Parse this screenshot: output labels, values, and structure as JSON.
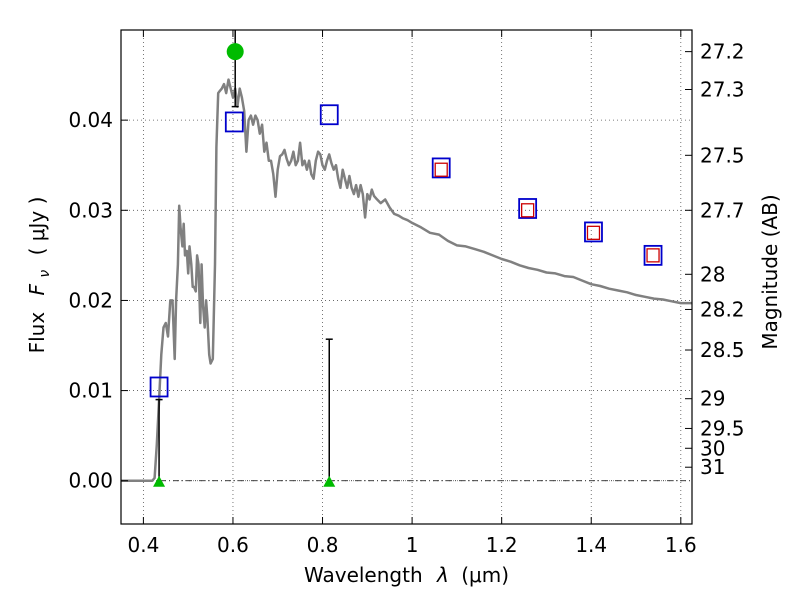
{
  "chart_data": {
    "type": "line",
    "xlabel_text": "Wavelength",
    "xlabel_symbol": "λ",
    "xlabel_unit": "(μm)",
    "ylabel_text": "Flux",
    "ylabel_symbol": "F",
    "ylabel_sub": "ν",
    "ylabel_unit": "( μJy )",
    "y2label": "Magnitude (AB)",
    "xlim": [
      0.35,
      1.625
    ],
    "ylim": [
      -0.0048,
      0.05
    ],
    "grid": true,
    "x_ticks": [
      {
        "value": 0.4,
        "label": "0.4"
      },
      {
        "value": 0.6,
        "label": "0.6"
      },
      {
        "value": 0.8,
        "label": "0.8"
      },
      {
        "value": 1.0,
        "label": "1"
      },
      {
        "value": 1.2,
        "label": "1.2"
      },
      {
        "value": 1.4,
        "label": "1.4"
      },
      {
        "value": 1.6,
        "label": "1.6"
      }
    ],
    "y_ticks": [
      {
        "value": 0.0,
        "label": "0.00"
      },
      {
        "value": 0.01,
        "label": "0.01"
      },
      {
        "value": 0.02,
        "label": "0.02"
      },
      {
        "value": 0.03,
        "label": "0.03"
      },
      {
        "value": 0.04,
        "label": "0.04"
      }
    ],
    "mag_ticks": [
      {
        "label": "27.2",
        "flux": 0.0476
      },
      {
        "label": "27.3",
        "flux": 0.0434
      },
      {
        "label": "27.5",
        "flux": 0.0361
      },
      {
        "label": "27.7",
        "flux": 0.03
      },
      {
        "label": "28",
        "flux": 0.0229
      },
      {
        "label": "28.2",
        "flux": 0.019
      },
      {
        "label": "28.5",
        "flux": 0.0145
      },
      {
        "label": "29",
        "flux": 0.0091
      },
      {
        "label": "29.5",
        "flux": 0.0058
      },
      {
        "label": "30",
        "flux": 0.0036
      },
      {
        "label": "31",
        "flux": 0.0015
      }
    ],
    "colors": {
      "model": "#808080",
      "open_square": "#0000cc",
      "small_square": "#cc0000",
      "detection": "#00bb00",
      "errorbar": "#000000",
      "zero_line": "#000000"
    },
    "series": [
      {
        "kind": "model_sed",
        "x": [
          0.35,
          0.42,
          0.425,
          0.43,
          0.435,
          0.44,
          0.445,
          0.45,
          0.455,
          0.46,
          0.465,
          0.47,
          0.473,
          0.477,
          0.48,
          0.483,
          0.487,
          0.49,
          0.493,
          0.497,
          0.5,
          0.503,
          0.507,
          0.51,
          0.513,
          0.517,
          0.52,
          0.523,
          0.527,
          0.53,
          0.533,
          0.537,
          0.54,
          0.543,
          0.547,
          0.55,
          0.555,
          0.56,
          0.563,
          0.567,
          0.57,
          0.575,
          0.58,
          0.585,
          0.59,
          0.595,
          0.6,
          0.605,
          0.61,
          0.615,
          0.62,
          0.625,
          0.63,
          0.635,
          0.64,
          0.645,
          0.65,
          0.655,
          0.66,
          0.665,
          0.67,
          0.675,
          0.68,
          0.685,
          0.69,
          0.695,
          0.7,
          0.705,
          0.71,
          0.715,
          0.72,
          0.725,
          0.73,
          0.735,
          0.74,
          0.745,
          0.75,
          0.755,
          0.76,
          0.765,
          0.77,
          0.775,
          0.78,
          0.785,
          0.79,
          0.795,
          0.8,
          0.805,
          0.81,
          0.815,
          0.82,
          0.825,
          0.83,
          0.835,
          0.84,
          0.845,
          0.85,
          0.855,
          0.86,
          0.865,
          0.87,
          0.875,
          0.88,
          0.885,
          0.89,
          0.895,
          0.9,
          0.905,
          0.91,
          0.915,
          0.92,
          0.93,
          0.94,
          0.95,
          0.96,
          0.97,
          0.98,
          0.99,
          1.0,
          1.02,
          1.04,
          1.06,
          1.08,
          1.1,
          1.12,
          1.14,
          1.16,
          1.18,
          1.2,
          1.22,
          1.24,
          1.26,
          1.28,
          1.3,
          1.32,
          1.34,
          1.36,
          1.38,
          1.4,
          1.42,
          1.44,
          1.46,
          1.48,
          1.5,
          1.52,
          1.54,
          1.56,
          1.58,
          1.6,
          1.625
        ],
        "y": [
          0.0,
          0.0,
          0.0003,
          0.004,
          0.009,
          0.014,
          0.017,
          0.0175,
          0.016,
          0.02,
          0.02,
          0.0135,
          0.02,
          0.024,
          0.0305,
          0.028,
          0.026,
          0.0285,
          0.025,
          0.0255,
          0.023,
          0.026,
          0.024,
          0.0215,
          0.0215,
          0.021,
          0.025,
          0.024,
          0.0175,
          0.024,
          0.0195,
          0.017,
          0.02,
          0.018,
          0.014,
          0.013,
          0.0135,
          0.024,
          0.037,
          0.043,
          0.0432,
          0.0435,
          0.044,
          0.043,
          0.0445,
          0.0435,
          0.0425,
          0.0435,
          0.0415,
          0.0435,
          0.0425,
          0.041,
          0.0365,
          0.04,
          0.0405,
          0.0395,
          0.0405,
          0.04,
          0.0385,
          0.0395,
          0.0365,
          0.0375,
          0.0355,
          0.0355,
          0.034,
          0.0315,
          0.0345,
          0.036,
          0.0362,
          0.0367,
          0.0357,
          0.035,
          0.0355,
          0.0365,
          0.035,
          0.0355,
          0.0375,
          0.035,
          0.0355,
          0.0345,
          0.0355,
          0.034,
          0.0335,
          0.0355,
          0.0365,
          0.0362,
          0.035,
          0.0345,
          0.0355,
          0.0362,
          0.0352,
          0.0345,
          0.035,
          0.0335,
          0.0325,
          0.0345,
          0.0335,
          0.0325,
          0.0338,
          0.0325,
          0.0318,
          0.0328,
          0.0315,
          0.0328,
          0.0318,
          0.0292,
          0.0318,
          0.0312,
          0.0323,
          0.0316,
          0.0313,
          0.0308,
          0.0312,
          0.0303,
          0.0296,
          0.0294,
          0.0291,
          0.0289,
          0.0286,
          0.0281,
          0.0275,
          0.0273,
          0.0266,
          0.0261,
          0.026,
          0.0257,
          0.0254,
          0.025,
          0.0246,
          0.0243,
          0.0239,
          0.0236,
          0.0234,
          0.0231,
          0.023,
          0.0227,
          0.0226,
          0.0222,
          0.0218,
          0.0216,
          0.0213,
          0.0211,
          0.0209,
          0.0206,
          0.0204,
          0.0202,
          0.0201,
          0.0199,
          0.0197,
          0.0197
        ]
      },
      {
        "kind": "open_squares",
        "x": [
          0.435,
          0.603,
          0.815,
          1.065,
          1.258,
          1.405,
          1.538
        ],
        "y": [
          0.0104,
          0.0398,
          0.0406,
          0.0347,
          0.0302,
          0.0276,
          0.025
        ]
      },
      {
        "kind": "small_squares",
        "x": [
          1.065,
          1.258,
          1.405,
          1.538
        ],
        "y": [
          0.0345,
          0.03,
          0.0275,
          0.025
        ]
      },
      {
        "kind": "detection",
        "x": [
          0.605
        ],
        "y": [
          0.0476
        ],
        "err_low": [
          0.0415
        ],
        "err_high": [
          0.053
        ]
      },
      {
        "kind": "upper_limits",
        "x": [
          0.435,
          0.815
        ],
        "y": [
          0.0,
          0.0
        ],
        "err_high": [
          0.009,
          0.0157
        ]
      }
    ]
  }
}
